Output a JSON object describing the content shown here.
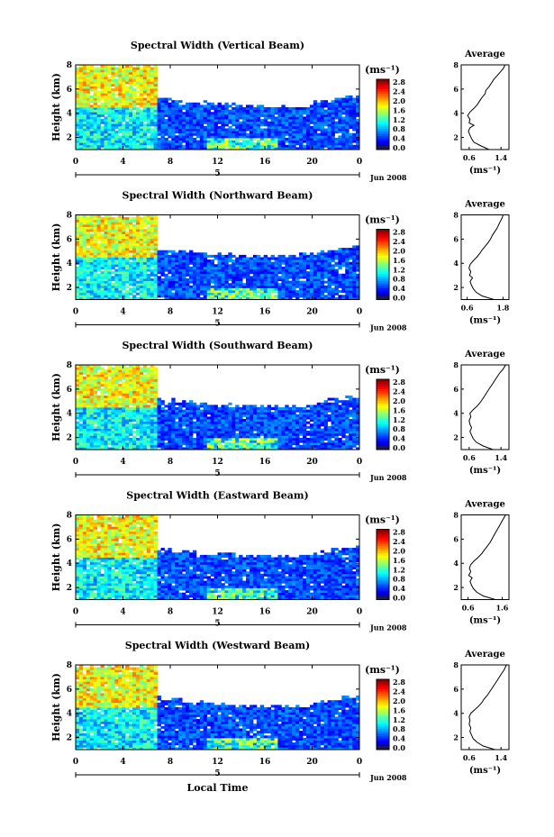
{
  "chart_data": [
    {
      "type": "heatmap",
      "title": "Spectral Width (Vertical Beam)",
      "ylabel": "Height (km)",
      "ylim": [
        1,
        8
      ],
      "yticks": [
        "2",
        "4",
        "6",
        "8"
      ],
      "xlim": [
        0,
        24
      ],
      "xticks": [
        "0",
        "4",
        "8",
        "12",
        "16",
        "20",
        "0"
      ],
      "date_label": "5",
      "month_year": "Jun 2008",
      "colorbar_unit": "(ms⁻¹)",
      "colorbar_ticks": [
        "0.0",
        "0.4",
        "0.8",
        "1.2",
        "1.6",
        "2.0",
        "2.4",
        "2.8"
      ],
      "colorbar_range": [
        0,
        3.0
      ],
      "average": {
        "title": "Average",
        "unit": "(ms⁻¹)",
        "xticks": [
          "0.6",
          "1.4"
        ],
        "xlim": [
          0.4,
          1.6
        ],
        "profile": [
          [
            1.0,
            1.1
          ],
          [
            1.3,
            0.9
          ],
          [
            1.6,
            0.72
          ],
          [
            1.9,
            0.66
          ],
          [
            2.2,
            0.62
          ],
          [
            2.5,
            0.58
          ],
          [
            2.8,
            0.62
          ],
          [
            3.0,
            0.72
          ],
          [
            3.2,
            0.6
          ],
          [
            3.5,
            0.62
          ],
          [
            3.8,
            0.56
          ],
          [
            4.1,
            0.62
          ],
          [
            4.4,
            0.72
          ],
          [
            4.7,
            0.8
          ],
          [
            5.0,
            0.86
          ],
          [
            5.3,
            0.92
          ],
          [
            5.6,
            1.0
          ],
          [
            5.9,
            1.02
          ],
          [
            6.2,
            1.1
          ],
          [
            6.5,
            1.16
          ],
          [
            6.8,
            1.22
          ],
          [
            7.1,
            1.3
          ],
          [
            7.4,
            1.38
          ],
          [
            7.7,
            1.46
          ],
          [
            8.0,
            1.5
          ]
        ]
      }
    },
    {
      "type": "heatmap",
      "title": "Spectral Width (Northward Beam)",
      "ylabel": "Height (km)",
      "ylim": [
        1,
        8
      ],
      "yticks": [
        "2",
        "4",
        "6",
        "8"
      ],
      "xlim": [
        0,
        24
      ],
      "xticks": [
        "0",
        "4",
        "8",
        "12",
        "16",
        "20",
        "0"
      ],
      "date_label": "5",
      "month_year": "Jun 2008",
      "colorbar_unit": "(ms⁻¹)",
      "colorbar_ticks": [
        "0.0",
        "0.4",
        "0.8",
        "1.2",
        "1.6",
        "2.0",
        "2.4",
        "2.8"
      ],
      "colorbar_range": [
        0,
        3.0
      ],
      "average": {
        "title": "Average",
        "unit": "(ms⁻¹)",
        "xticks": [
          "0.6",
          "1.8"
        ],
        "xlim": [
          0.4,
          2.0
        ],
        "profile": [
          [
            1.0,
            1.5
          ],
          [
            1.3,
            1.1
          ],
          [
            1.6,
            0.9
          ],
          [
            1.9,
            0.8
          ],
          [
            2.2,
            0.74
          ],
          [
            2.5,
            0.7
          ],
          [
            2.8,
            0.78
          ],
          [
            3.0,
            0.68
          ],
          [
            3.3,
            0.72
          ],
          [
            3.6,
            0.66
          ],
          [
            3.9,
            0.7
          ],
          [
            4.2,
            0.8
          ],
          [
            4.5,
            0.92
          ],
          [
            4.8,
            1.02
          ],
          [
            5.1,
            1.1
          ],
          [
            5.4,
            1.2
          ],
          [
            5.7,
            1.3
          ],
          [
            6.0,
            1.38
          ],
          [
            6.3,
            1.44
          ],
          [
            6.6,
            1.52
          ],
          [
            6.9,
            1.6
          ],
          [
            7.2,
            1.66
          ],
          [
            7.5,
            1.72
          ],
          [
            7.8,
            1.78
          ],
          [
            8.0,
            1.8
          ]
        ]
      }
    },
    {
      "type": "heatmap",
      "title": "Spectral Width (Southward Beam)",
      "ylabel": "Height (km)",
      "ylim": [
        1,
        8
      ],
      "yticks": [
        "2",
        "4",
        "6",
        "8"
      ],
      "xlim": [
        0,
        24
      ],
      "xticks": [
        "0",
        "4",
        "8",
        "12",
        "16",
        "20",
        "0"
      ],
      "date_label": "5",
      "month_year": "Jun 2008",
      "colorbar_unit": "(ms⁻¹)",
      "colorbar_ticks": [
        "0.0",
        "0.4",
        "0.8",
        "1.2",
        "1.6",
        "2.0",
        "2.4",
        "2.8"
      ],
      "colorbar_range": [
        0,
        3.0
      ],
      "average": {
        "title": "Average",
        "unit": "(ms⁻¹)",
        "xticks": [
          "0.6",
          "1.4"
        ],
        "xlim": [
          0.4,
          1.6
        ],
        "profile": [
          [
            1.0,
            1.2
          ],
          [
            1.3,
            0.95
          ],
          [
            1.6,
            0.78
          ],
          [
            1.9,
            0.7
          ],
          [
            2.2,
            0.66
          ],
          [
            2.5,
            0.62
          ],
          [
            2.8,
            0.66
          ],
          [
            3.1,
            0.62
          ],
          [
            3.4,
            0.6
          ],
          [
            3.7,
            0.64
          ],
          [
            4.0,
            0.62
          ],
          [
            4.3,
            0.7
          ],
          [
            4.6,
            0.8
          ],
          [
            4.9,
            0.88
          ],
          [
            5.2,
            0.94
          ],
          [
            5.5,
            1.0
          ],
          [
            5.8,
            1.06
          ],
          [
            6.1,
            1.12
          ],
          [
            6.4,
            1.18
          ],
          [
            6.7,
            1.24
          ],
          [
            7.0,
            1.3
          ],
          [
            7.3,
            1.36
          ],
          [
            7.6,
            1.44
          ],
          [
            7.9,
            1.5
          ],
          [
            8.0,
            1.52
          ]
        ]
      }
    },
    {
      "type": "heatmap",
      "title": "Spectral Width (Eastward Beam)",
      "ylabel": "Height (km)",
      "ylim": [
        1,
        8
      ],
      "yticks": [
        "2",
        "4",
        "6",
        "8"
      ],
      "xlim": [
        0,
        24
      ],
      "xticks": [
        "0",
        "4",
        "8",
        "12",
        "16",
        "20",
        "0"
      ],
      "date_label": "5",
      "month_year": "Jun 2008",
      "colorbar_unit": "(ms⁻¹)",
      "colorbar_ticks": [
        "0.0",
        "0.4",
        "0.8",
        "1.2",
        "1.6",
        "2.0",
        "2.4",
        "2.8"
      ],
      "colorbar_range": [
        0,
        3.0
      ],
      "average": {
        "title": "Average",
        "unit": "(ms⁻¹)",
        "xticks": [
          "0.6",
          "1.6"
        ],
        "xlim": [
          0.4,
          1.8
        ],
        "profile": [
          [
            1.0,
            1.4
          ],
          [
            1.3,
            1.05
          ],
          [
            1.6,
            0.86
          ],
          [
            1.9,
            0.76
          ],
          [
            2.2,
            0.7
          ],
          [
            2.5,
            0.66
          ],
          [
            2.8,
            0.72
          ],
          [
            3.0,
            0.62
          ],
          [
            3.3,
            0.68
          ],
          [
            3.6,
            0.64
          ],
          [
            3.9,
            0.68
          ],
          [
            4.2,
            0.78
          ],
          [
            4.5,
            0.9
          ],
          [
            4.8,
            1.0
          ],
          [
            5.1,
            1.08
          ],
          [
            5.4,
            1.16
          ],
          [
            5.7,
            1.24
          ],
          [
            6.0,
            1.3
          ],
          [
            6.3,
            1.36
          ],
          [
            6.6,
            1.42
          ],
          [
            6.9,
            1.48
          ],
          [
            7.2,
            1.54
          ],
          [
            7.5,
            1.6
          ],
          [
            7.8,
            1.66
          ],
          [
            8.0,
            1.7
          ]
        ]
      }
    },
    {
      "type": "heatmap",
      "title": "Spectral Width (Westward Beam)",
      "ylabel": "Height (km)",
      "ylim": [
        1,
        8
      ],
      "yticks": [
        "2",
        "4",
        "6",
        "8"
      ],
      "xlim": [
        0,
        24
      ],
      "xticks": [
        "0",
        "4",
        "8",
        "12",
        "16",
        "20",
        "0"
      ],
      "date_label": "5",
      "month_year": "Jun 2008",
      "xlabel": "Local Time",
      "colorbar_unit": "(ms⁻¹)",
      "colorbar_ticks": [
        "0.0",
        "0.4",
        "0.8",
        "1.2",
        "1.6",
        "2.0",
        "2.4",
        "2.8"
      ],
      "colorbar_range": [
        0,
        3.0
      ],
      "average": {
        "title": "Average",
        "unit": "(ms⁻¹)",
        "xticks": [
          "0.6",
          "1.4"
        ],
        "xlim": [
          0.4,
          1.6
        ],
        "profile": [
          [
            1.0,
            1.25
          ],
          [
            1.3,
            0.95
          ],
          [
            1.6,
            0.8
          ],
          [
            1.9,
            0.7
          ],
          [
            2.2,
            0.66
          ],
          [
            2.5,
            0.62
          ],
          [
            2.8,
            0.64
          ],
          [
            3.1,
            0.6
          ],
          [
            3.4,
            0.62
          ],
          [
            3.7,
            0.6
          ],
          [
            4.0,
            0.64
          ],
          [
            4.3,
            0.74
          ],
          [
            4.6,
            0.84
          ],
          [
            4.9,
            0.92
          ],
          [
            5.2,
            0.98
          ],
          [
            5.5,
            1.06
          ],
          [
            5.8,
            1.12
          ],
          [
            6.1,
            1.18
          ],
          [
            6.4,
            1.24
          ],
          [
            6.7,
            1.3
          ],
          [
            7.0,
            1.36
          ],
          [
            7.3,
            1.42
          ],
          [
            7.6,
            1.48
          ],
          [
            7.9,
            1.52
          ],
          [
            8.0,
            1.54
          ]
        ]
      }
    }
  ]
}
